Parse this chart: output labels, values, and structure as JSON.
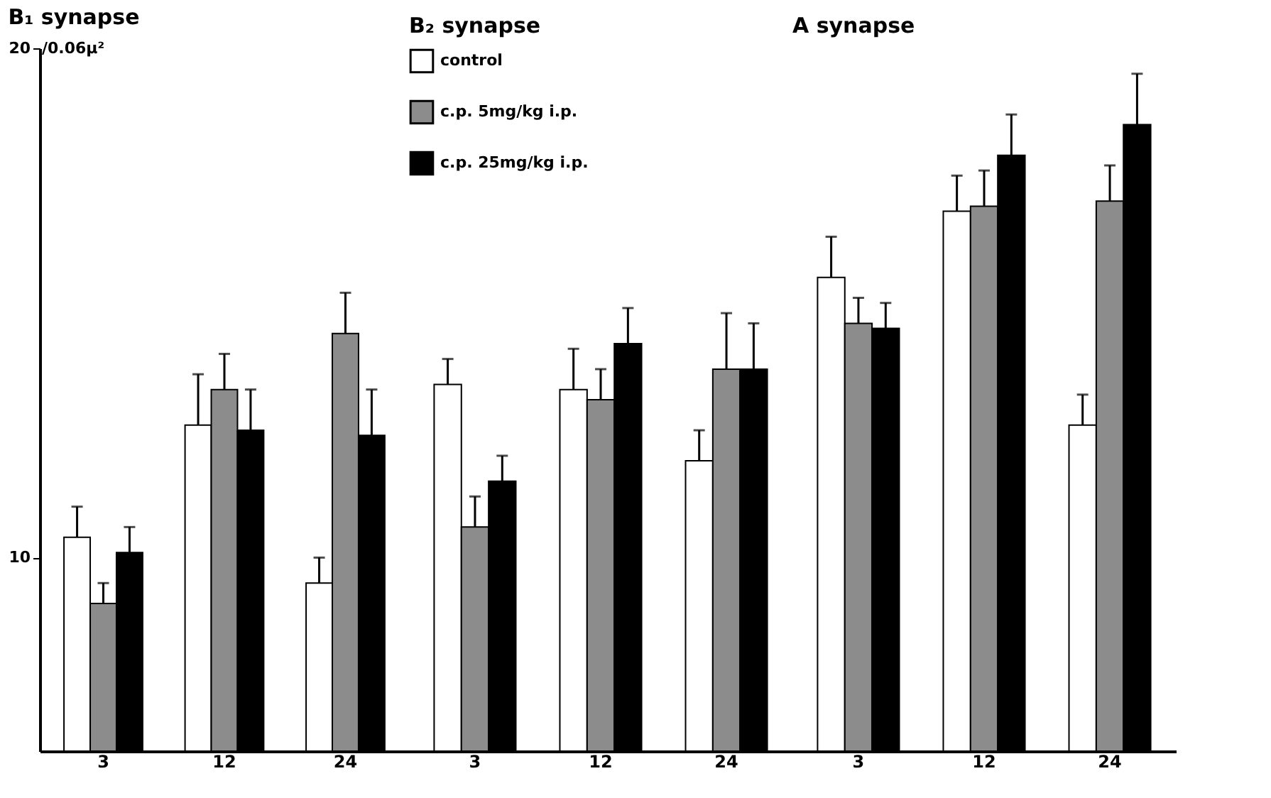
{
  "chart_data": [
    {
      "type": "bar",
      "title": "B₁ synapse",
      "categories": [
        "3",
        "12",
        "24"
      ],
      "ylim": [
        6.2,
        20
      ],
      "yticks": [
        10,
        20
      ],
      "ylabel": "/0.06µ²",
      "grid": false,
      "legend": false,
      "series": [
        {
          "color": "#ffffff",
          "values": [
            10.4,
            12.6,
            9.5
          ],
          "errors": [
            [
              10.4,
              11.0
            ],
            [
              12.6,
              13.6
            ],
            [
              9.5,
              10.0
            ]
          ]
        },
        {
          "color": "#8c8c8c",
          "values": [
            9.1,
            13.3,
            14.4
          ],
          "errors": [
            [
              9.1,
              9.5
            ],
            [
              13.3,
              14.0
            ],
            [
              14.4,
              15.2
            ]
          ]
        },
        {
          "color": "#000000",
          "values": [
            10.1,
            12.5,
            12.4
          ],
          "errors": [
            [
              10.1,
              10.6
            ],
            [
              12.5,
              13.3
            ],
            [
              12.4,
              13.3
            ]
          ]
        }
      ]
    },
    {
      "type": "bar",
      "title": "B₂ synapse",
      "categories": [
        "3",
        "12",
        "24"
      ],
      "ylim": [
        6.2,
        20
      ],
      "tick_labels": "x",
      "grid": false,
      "legend": "top left",
      "series": [
        {
          "name": "control",
          "color": "#ffffff",
          "values": [
            13.4,
            13.3,
            11.9
          ],
          "errors": [
            [
              13.4,
              13.9
            ],
            [
              13.3,
              14.1
            ],
            [
              11.9,
              12.5
            ]
          ]
        },
        {
          "name": "c.p.   5mg/kg  i.p.",
          "color": "#8c8c8c",
          "values": [
            10.6,
            13.1,
            13.7
          ],
          "errors": [
            [
              10.6,
              11.2
            ],
            [
              13.1,
              13.7
            ],
            [
              13.7,
              14.8
            ]
          ]
        },
        {
          "name": "c.p.   25mg/kg   i.p.",
          "color": "#000000",
          "values": [
            11.5,
            14.2,
            13.7
          ],
          "errors": [
            [
              11.5,
              12.0
            ],
            [
              14.2,
              14.9
            ],
            [
              13.7,
              14.6
            ]
          ]
        }
      ]
    },
    {
      "type": "bar",
      "title": "A synapse",
      "categories": [
        "3",
        "12",
        "24"
      ],
      "ylim": [
        6.2,
        20
      ],
      "tick_labels": "x",
      "grid": false,
      "legend": false,
      "series": [
        {
          "color": "#ffffff",
          "values": [
            15.5,
            16.8,
            12.6
          ],
          "errors": [
            [
              15.5,
              16.3
            ],
            [
              16.8,
              17.5
            ],
            [
              12.6,
              13.2
            ]
          ]
        },
        {
          "color": "#8c8c8c",
          "values": [
            14.6,
            16.9,
            17.0
          ],
          "errors": [
            [
              14.6,
              15.1
            ],
            [
              16.9,
              17.6
            ],
            [
              17.0,
              17.7
            ]
          ]
        },
        {
          "color": "#000000",
          "values": [
            14.5,
            17.9,
            18.5
          ],
          "errors": [
            [
              14.5,
              15.0
            ],
            [
              17.9,
              18.7
            ],
            [
              18.5,
              19.5
            ]
          ]
        }
      ]
    }
  ]
}
